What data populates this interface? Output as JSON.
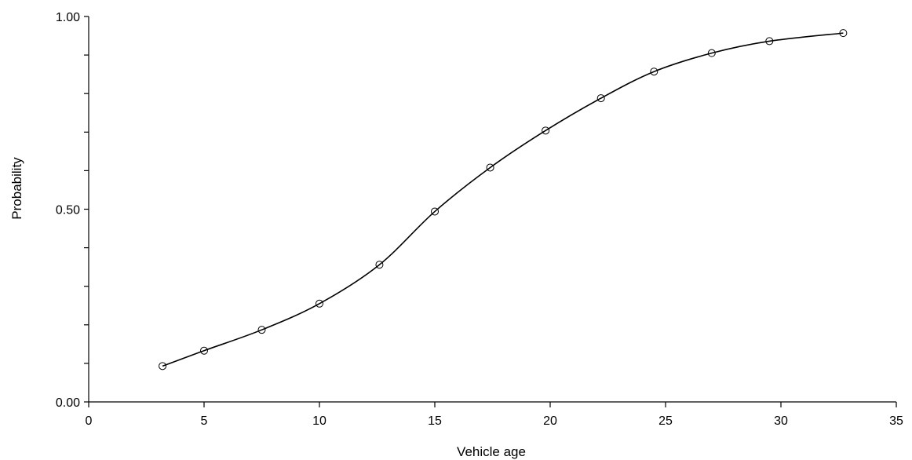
{
  "chart_data": {
    "type": "line",
    "title": "",
    "xlabel": "Vehicle age",
    "ylabel": "Probability",
    "xlim": [
      0,
      35
    ],
    "ylim": [
      0,
      1
    ],
    "x_ticks": [
      0,
      5,
      10,
      15,
      20,
      25,
      30,
      35
    ],
    "x_tick_labels": [
      "0",
      "5",
      "10",
      "15",
      "20",
      "25",
      "30",
      "35"
    ],
    "y_ticks": [
      0,
      0.1,
      0.2,
      0.3,
      0.4,
      0.5,
      0.6,
      0.7,
      0.8,
      0.9,
      1.0
    ],
    "y_tick_labels": [
      "0.00",
      "",
      "",
      "",
      "",
      "0.50",
      "",
      "",
      "",
      "",
      "1.00"
    ],
    "grid": false,
    "legend": "none",
    "line_color": "#000000",
    "marker": "open-circle",
    "series": [
      {
        "x": [
          3.2,
          5.0,
          7.5,
          10.0,
          12.6,
          15.0,
          17.4,
          19.8,
          22.2,
          24.5,
          27.0,
          29.5,
          32.7
        ],
        "values": [
          0.093,
          0.133,
          0.187,
          0.255,
          0.356,
          0.494,
          0.608,
          0.704,
          0.788,
          0.857,
          0.905,
          0.936,
          0.957
        ]
      }
    ]
  }
}
